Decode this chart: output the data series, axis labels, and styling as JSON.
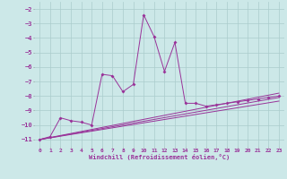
{
  "xlabel": "Windchill (Refroidissement éolien,°C)",
  "background_color": "#cce8e8",
  "grid_color": "#aacccc",
  "line_color": "#993399",
  "xlim": [
    -0.5,
    23.5
  ],
  "ylim": [
    -11.5,
    -1.5
  ],
  "x_ticks": [
    0,
    1,
    2,
    3,
    4,
    5,
    6,
    7,
    8,
    9,
    10,
    11,
    12,
    13,
    14,
    15,
    16,
    17,
    18,
    19,
    20,
    21,
    22,
    23
  ],
  "y_ticks": [
    -11,
    -10,
    -9,
    -8,
    -7,
    -6,
    -5,
    -4,
    -3,
    -2
  ],
  "main_x": [
    0,
    1,
    2,
    3,
    4,
    5,
    6,
    7,
    8,
    9,
    10,
    11,
    12,
    13,
    14,
    15,
    16,
    17,
    18,
    19,
    20,
    21,
    22,
    23
  ],
  "main_y": [
    -11.0,
    -10.8,
    -9.5,
    -9.7,
    -9.8,
    -10.0,
    -6.5,
    -6.6,
    -7.7,
    -7.2,
    -2.4,
    -3.9,
    -6.3,
    -4.3,
    -8.5,
    -8.5,
    -8.7,
    -8.6,
    -8.5,
    -8.4,
    -8.3,
    -8.2,
    -8.1,
    -8.0
  ],
  "line2_x": [
    0,
    23
  ],
  "line2_y": [
    -11.0,
    -7.8
  ],
  "line3_x": [
    0,
    23
  ],
  "line3_y": [
    -11.0,
    -8.1
  ],
  "line4_x": [
    0,
    23
  ],
  "line4_y": [
    -11.0,
    -8.35
  ],
  "figsize": [
    3.2,
    2.0
  ],
  "dpi": 100
}
